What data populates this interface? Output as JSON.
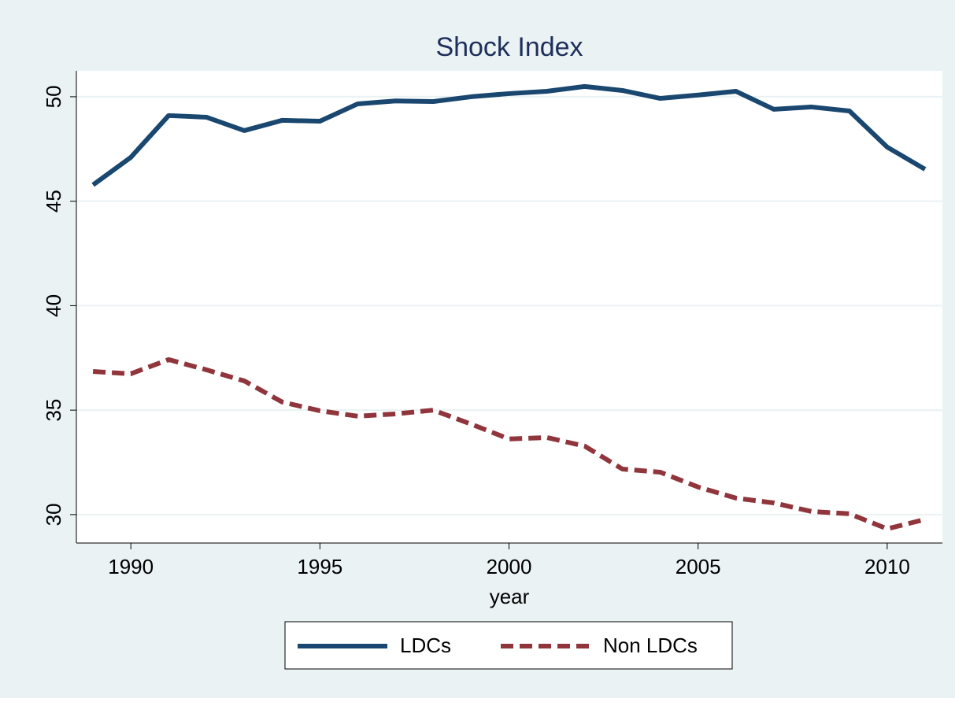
{
  "chart_data": {
    "type": "line",
    "title": "Shock Index",
    "xlabel": "year",
    "x": [
      1989,
      1990,
      1991,
      1992,
      1993,
      1994,
      1995,
      1996,
      1997,
      1998,
      1999,
      2000,
      2001,
      2002,
      2003,
      2004,
      2005,
      2006,
      2007,
      2008,
      2009,
      2010,
      2011
    ],
    "series": [
      {
        "name": "LDCs",
        "color": "#1a476f",
        "dash": false,
        "values": [
          45.78,
          47.1,
          49.1,
          49.02,
          48.38,
          48.87,
          48.83,
          49.66,
          49.8,
          49.77,
          50.0,
          50.15,
          50.26,
          50.49,
          50.3,
          49.92,
          50.08,
          50.26,
          49.4,
          49.51,
          49.32,
          47.59,
          46.53
        ]
      },
      {
        "name": "Non LDCs",
        "color": "#90353b",
        "dash": true,
        "values": [
          36.85,
          36.74,
          37.42,
          36.93,
          36.4,
          35.39,
          34.97,
          34.71,
          34.82,
          35.0,
          34.33,
          33.62,
          33.69,
          33.28,
          32.18,
          32.03,
          31.32,
          30.79,
          30.56,
          30.15,
          30.04,
          29.32,
          29.77
        ]
      }
    ],
    "xlim": [
      1988.56,
      2011.46
    ],
    "xticks": [
      1990,
      1995,
      2000,
      2005,
      2010
    ],
    "ylim": [
      28.64,
      51.24
    ],
    "yticks": [
      30,
      35,
      40,
      45,
      50
    ],
    "grid": true,
    "legend": "bottom"
  }
}
